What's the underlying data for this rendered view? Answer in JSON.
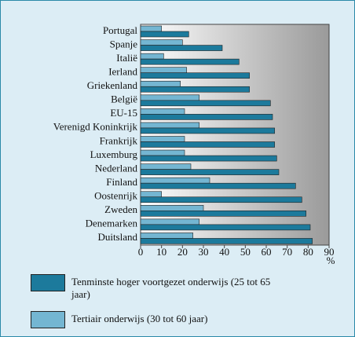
{
  "chart_data": {
    "type": "hbar",
    "categories": [
      "Portugal",
      "Spanje",
      "Italië",
      "Ierland",
      "Griekenland",
      "België",
      "EU-15",
      "Verenigd Koninkrijk",
      "Frankrijk",
      "Luxemburg",
      "Nederland",
      "Finland",
      "Oostenrijk",
      "Zweden",
      "Denemarken",
      "Duitsland"
    ],
    "series": [
      {
        "name": "Tenminste hoger voortgezet onderwijs (25 tot 65 jaar)",
        "color": "#1c7a9c",
        "values": [
          23,
          39,
          47,
          52,
          52,
          62,
          63,
          64,
          64,
          65,
          66,
          74,
          77,
          79,
          81,
          82
        ]
      },
      {
        "name": "Tertiair onderwijs (30 tot 60 jaar)",
        "color": "#74b6d2",
        "values": [
          10,
          20,
          11,
          22,
          19,
          28,
          21,
          28,
          21,
          21,
          24,
          33,
          10,
          30,
          28,
          25
        ]
      }
    ],
    "xlabel": "%",
    "xlim": [
      0,
      90
    ],
    "xticks": [
      0,
      10,
      20,
      30,
      40,
      50,
      60,
      70,
      80,
      90
    ],
    "grid": false
  }
}
